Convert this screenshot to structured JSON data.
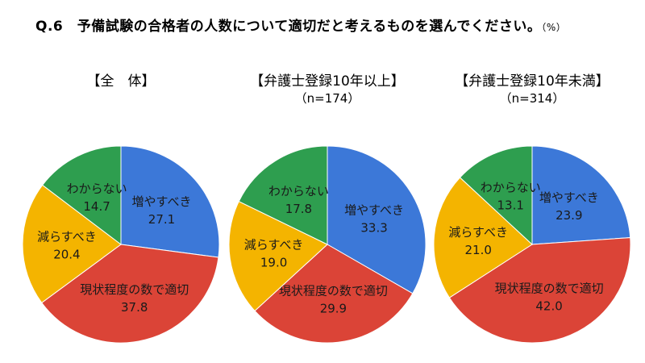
{
  "question": {
    "label": "Q.6　予備試験の合格者の人数について適切だと考えるものを選んでください。",
    "unit": "（%）"
  },
  "colors": {
    "increase": "#3c78d8",
    "appropriate": "#db4437",
    "decrease": "#f4b400",
    "unknown": "#2e9e4f"
  },
  "chart_data": [
    {
      "type": "pie",
      "title": "【全　体】",
      "subtitle": "",
      "slices": [
        {
          "label": "増やすべき",
          "value": 27.1,
          "value_text": "27.1",
          "color_key": "increase"
        },
        {
          "label": "現状程度の数で適切",
          "value": 37.8,
          "value_text": "37.8",
          "color_key": "appropriate"
        },
        {
          "label": "減らすべき",
          "value": 20.4,
          "value_text": "20.4",
          "color_key": "decrease"
        },
        {
          "label": "わからない",
          "value": 14.7,
          "value_text": "14.7",
          "color_key": "unknown"
        }
      ]
    },
    {
      "type": "pie",
      "title": "【弁護士登録10年以上】",
      "subtitle": "（n=174）",
      "slices": [
        {
          "label": "増やすべき",
          "value": 33.3,
          "value_text": "33.3",
          "color_key": "increase"
        },
        {
          "label": "現状程度の数で適切",
          "value": 29.9,
          "value_text": "29.9",
          "color_key": "appropriate"
        },
        {
          "label": "減らすべき",
          "value": 19.0,
          "value_text": "19.0",
          "color_key": "decrease"
        },
        {
          "label": "わからない",
          "value": 17.8,
          "value_text": "17.8",
          "color_key": "unknown"
        }
      ]
    },
    {
      "type": "pie",
      "title": "【弁護士登録10年未満】",
      "subtitle": "（n=314）",
      "slices": [
        {
          "label": "増やすべき",
          "value": 23.9,
          "value_text": "23.9",
          "color_key": "increase"
        },
        {
          "label": "現状程度の数で適切",
          "value": 42.0,
          "value_text": "42.0",
          "color_key": "appropriate"
        },
        {
          "label": "減らすべき",
          "value": 21.0,
          "value_text": "21.0",
          "color_key": "decrease"
        },
        {
          "label": "わからない",
          "value": 13.1,
          "value_text": "13.1",
          "color_key": "unknown"
        }
      ]
    }
  ]
}
